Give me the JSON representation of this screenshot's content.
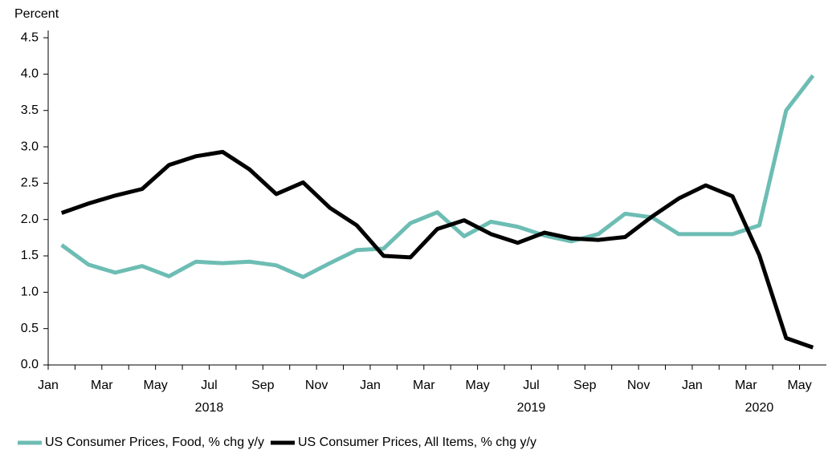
{
  "chart_data": {
    "type": "line",
    "y_axis_label": "Percent",
    "categories": [
      "Jan",
      null,
      "Mar",
      null,
      "May",
      null,
      "Jul",
      null,
      "Sep",
      null,
      "Nov",
      null,
      "Jan",
      null,
      "Mar",
      null,
      "May",
      null,
      "Jul",
      null,
      "Sep",
      null,
      "Nov",
      null,
      "Jan",
      null,
      "Mar",
      null,
      "May"
    ],
    "years": [
      {
        "label": "2018",
        "months": 12
      },
      {
        "label": "2019",
        "months": 12
      },
      {
        "label": "2020",
        "months": 5
      }
    ],
    "series": [
      {
        "name": "US Consumer Prices, Food, % chg y/y",
        "color": "#6dbdb4",
        "values": [
          1.65,
          1.38,
          1.27,
          1.36,
          1.22,
          1.42,
          1.4,
          1.42,
          1.37,
          1.21,
          1.4,
          1.58,
          1.6,
          1.95,
          2.1,
          1.77,
          1.97,
          1.9,
          1.78,
          1.7,
          1.8,
          2.08,
          2.03,
          1.8,
          1.8,
          1.8,
          1.92,
          3.5,
          3.98
        ]
      },
      {
        "name": "US Consumer Prices, All Items, % chg y/y",
        "color": "#000000",
        "values": [
          2.09,
          2.22,
          2.33,
          2.42,
          2.75,
          2.87,
          2.93,
          2.69,
          2.35,
          2.51,
          2.16,
          1.92,
          1.5,
          1.48,
          1.87,
          1.99,
          1.8,
          1.68,
          1.82,
          1.74,
          1.72,
          1.76,
          2.04,
          2.29,
          2.47,
          2.32,
          1.51,
          0.37,
          0.24
        ]
      }
    ],
    "ylim": [
      0,
      4.6
    ],
    "yticks": [
      {
        "value": 0,
        "label": "0.0"
      },
      {
        "value": 0.5,
        "label": "0.5"
      },
      {
        "value": 1,
        "label": "1.0"
      },
      {
        "value": 1.5,
        "label": "1.5"
      },
      {
        "value": 2,
        "label": "2.0"
      },
      {
        "value": 2.5,
        "label": "2.5"
      },
      {
        "value": 3,
        "label": "3.0"
      },
      {
        "value": 3.5,
        "label": "3.5"
      },
      {
        "value": 4,
        "label": "4.0"
      },
      {
        "value": 4.5,
        "label": "4.5"
      }
    ],
    "legend": "bottom"
  }
}
